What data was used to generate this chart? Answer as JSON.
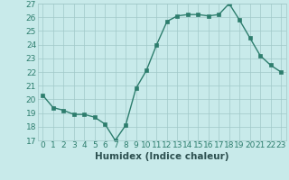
{
  "x": [
    0,
    1,
    2,
    3,
    4,
    5,
    6,
    7,
    8,
    9,
    10,
    11,
    12,
    13,
    14,
    15,
    16,
    17,
    18,
    19,
    20,
    21,
    22,
    23
  ],
  "y": [
    20.3,
    19.4,
    19.2,
    18.9,
    18.9,
    18.7,
    18.2,
    17.0,
    18.1,
    20.8,
    22.1,
    24.0,
    25.7,
    26.1,
    26.2,
    26.2,
    26.1,
    26.2,
    27.0,
    25.8,
    24.5,
    23.2,
    22.5,
    22.0
  ],
  "xlabel": "Humidex (Indice chaleur)",
  "ylim": [
    17,
    27
  ],
  "xlim": [
    -0.5,
    23.5
  ],
  "yticks": [
    17,
    18,
    19,
    20,
    21,
    22,
    23,
    24,
    25,
    26,
    27
  ],
  "xticks": [
    0,
    1,
    2,
    3,
    4,
    5,
    6,
    7,
    8,
    9,
    10,
    11,
    12,
    13,
    14,
    15,
    16,
    17,
    18,
    19,
    20,
    21,
    22,
    23
  ],
  "line_color": "#2d7d6d",
  "marker_color": "#2d7d6d",
  "bg_color": "#c8eaea",
  "grid_color": "#a0c8c8",
  "font_color": "#2d7d6d",
  "xlabel_color": "#2d5050",
  "xlabel_fontsize": 7.5,
  "tick_fontsize": 6.5
}
